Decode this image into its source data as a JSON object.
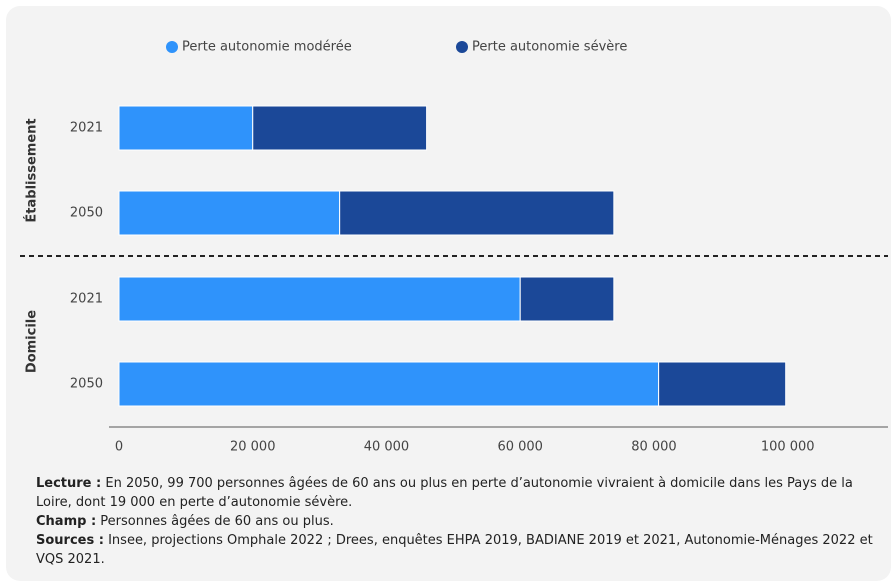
{
  "chart_data": {
    "type": "stacked-barh",
    "groups": [
      {
        "name": "Établissement",
        "categories": [
          "2021",
          "2050"
        ]
      },
      {
        "name": "Domicile",
        "categories": [
          "2021",
          "2050"
        ]
      }
    ],
    "series": [
      {
        "name": "Perte autonomie modérée",
        "color": "#2f93fb",
        "values": [
          20000,
          33000,
          60000,
          80700
        ]
      },
      {
        "name": "Perte autonomie sévère",
        "color": "#1b4898",
        "values": [
          26000,
          41000,
          14000,
          19000
        ]
      }
    ],
    "xlim": [
      0,
      115000
    ],
    "xticks": [
      0,
      {
        "value": 20000,
        "label": "20 000"
      },
      {
        "value": 40000,
        "label": "40 000"
      },
      {
        "value": 60000,
        "label": "60 000"
      },
      {
        "value": 80000,
        "label": "80 000"
      },
      {
        "value": 100000,
        "label": "100 000"
      }
    ],
    "legend": "top"
  },
  "notes": [
    {
      "label": "Lecture :",
      "text": "En 2050, 99 700 personnes âgées de 60 ans ou plus en perte d’autonomie vivraient à domicile dans les Pays de la Loire, dont 19 000 en perte d’autonomie sévère."
    },
    {
      "label": "Champ :",
      "text": "Personnes âgées de 60 ans ou plus."
    },
    {
      "label": "Sources :",
      "text": "Insee, projections Omphale 2022 ; Drees, enquêtes EHPA 2019, BADIANE 2019 et 2021, Autonomie-Ménages 2022 et VQS 2021."
    }
  ]
}
